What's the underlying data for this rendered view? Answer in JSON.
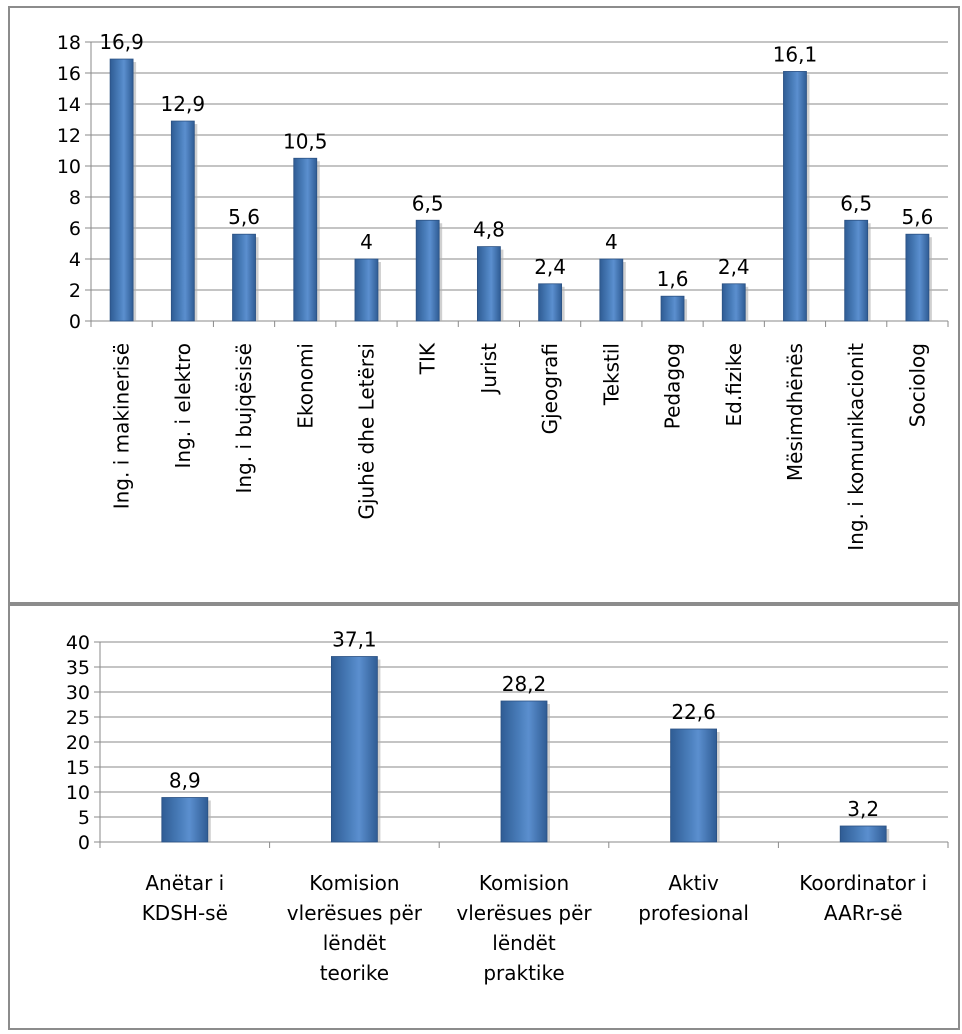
{
  "chart_data": [
    {
      "type": "bar",
      "categories": [
        "Ing. i makinerisë",
        "Ing. i elektro",
        "Ing. i bujqësisë",
        "Ekonomi",
        "Gjuhë dhe Letërsi",
        "TIK",
        "Jurist",
        "Gjeografi",
        "Tekstil",
        "Pedagog",
        "Ed.fizike",
        "Mësimdhënës",
        "Ing. i komunikacionit",
        "Sociolog"
      ],
      "values": [
        16.9,
        12.9,
        5.6,
        10.5,
        4,
        6.5,
        4.8,
        2.4,
        4,
        1.6,
        2.4,
        16.1,
        6.5,
        5.6
      ],
      "data_labels": [
        "16,9",
        "12,9",
        "5,6",
        "10,5",
        "4",
        "6,5",
        "4,8",
        "2,4",
        "4",
        "1,6",
        "2,4",
        "16,1",
        "6,5",
        "5,6"
      ],
      "yticks": [
        "0",
        "2",
        "4",
        "6",
        "8",
        "10",
        "12",
        "14",
        "16",
        "18"
      ],
      "ylim": [
        0,
        18
      ],
      "grid": true,
      "color": "#4a7ebb"
    },
    {
      "type": "bar",
      "categories": [
        "Anëtar i KDSH-së",
        "Komision vlerësues për lëndët teorike",
        "Komision vlerësues për lëndët praktike",
        "Aktiv profesional",
        "Koordinator i AARr-së"
      ],
      "category_lines": [
        [
          "Anëtar i",
          "KDSH-së"
        ],
        [
          "Komision",
          "vlerësues për",
          "lëndët",
          "teorike"
        ],
        [
          "Komision",
          "vlerësues për",
          "lëndët",
          "praktike"
        ],
        [
          "Aktiv",
          "profesional"
        ],
        [
          "Koordinator i",
          "AARr-së"
        ]
      ],
      "values": [
        8.9,
        37.1,
        28.2,
        22.6,
        3.2
      ],
      "data_labels": [
        "8,9",
        "37,1",
        "28,2",
        "22,6",
        "3,2"
      ],
      "yticks": [
        "0",
        "5",
        "10",
        "15",
        "20",
        "25",
        "30",
        "35",
        "40"
      ],
      "ylim": [
        0,
        40
      ],
      "grid": true,
      "color": "#4a7ebb"
    }
  ]
}
